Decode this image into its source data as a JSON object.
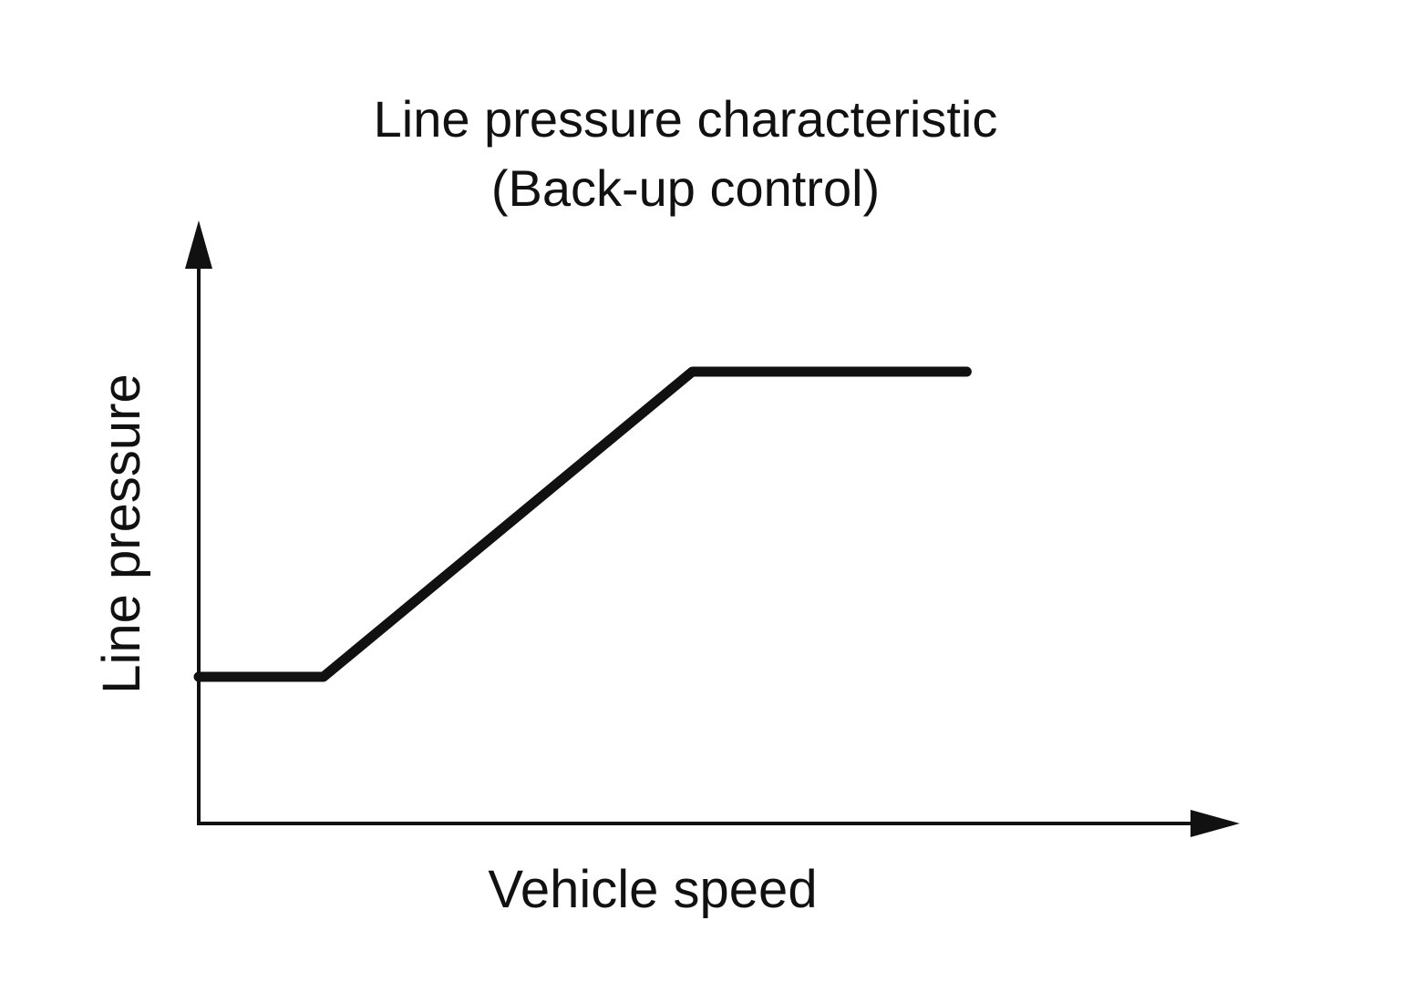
{
  "chart_data": {
    "type": "line",
    "title_lines": [
      "Line pressure characteristic",
      "(Back-up control)"
    ],
    "xlabel": "Vehicle speed",
    "ylabel": "Line pressure",
    "xlim": [
      0,
      100
    ],
    "ylim": [
      0,
      100
    ],
    "grid": false,
    "legend": "none",
    "x_ticks": false,
    "y_ticks": false,
    "line_color": "#111111",
    "series": [
      {
        "x": [
          0,
          12.5,
          49.5,
          77
        ],
        "y": [
          24.5,
          24.5,
          75.5,
          75.5
        ]
      }
    ]
  }
}
